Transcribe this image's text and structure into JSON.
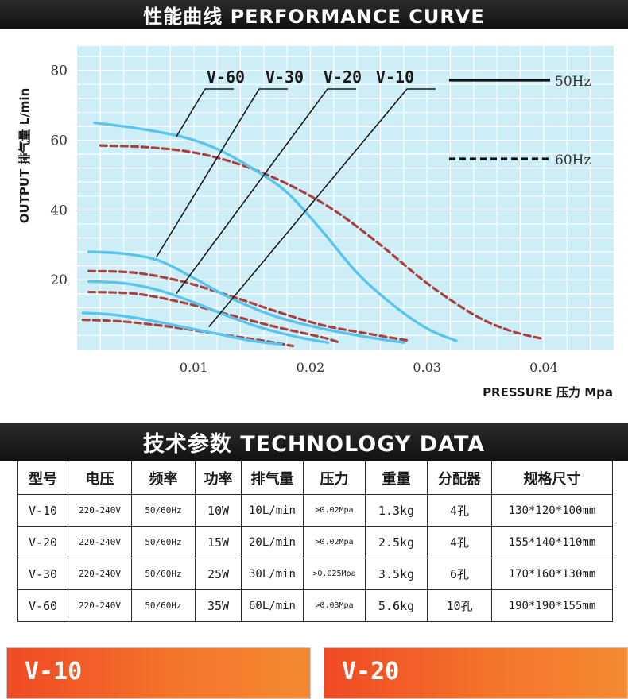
{
  "header": {
    "title": "性能曲线 PERFORMANCE CURVE"
  },
  "chart_data": {
    "type": "line",
    "ylabel": "OUTPUT 排气量 L/min",
    "xlabel": "PRESSURE 压力 Mpa",
    "xlim": [
      0,
      0.046
    ],
    "ylim": [
      0,
      87
    ],
    "xticks": [
      "0.01",
      "0.02",
      "0.03",
      "0.04"
    ],
    "xtick_values": [
      0.01,
      0.02,
      0.03,
      0.04
    ],
    "yticks": [
      "20",
      "40",
      "60",
      "80"
    ],
    "ytick_values": [
      20,
      40,
      60,
      80
    ],
    "grid": true,
    "legend_position": "top-right",
    "legend": [
      {
        "label": "50Hz",
        "style": "solid",
        "color": "#5bc4ee"
      },
      {
        "label": "60Hz",
        "style": "dashed",
        "color": "#a8423f"
      }
    ],
    "colors": {
      "background": "#cdeef7",
      "grid": "#ffffff",
      "line_50hz": "#5bc4ee",
      "line_60hz": "#a8423f"
    },
    "model_labels": [
      "V-60",
      "V-30",
      "V-20",
      "V-10"
    ],
    "series": [
      {
        "name": "V-60",
        "freq": "50Hz",
        "x": [
          0.0015,
          0.005,
          0.009,
          0.012,
          0.015,
          0.018,
          0.021,
          0.024,
          0.027,
          0.03,
          0.0325
        ],
        "y": [
          65,
          63.5,
          61,
          57.5,
          52,
          45,
          34,
          22,
          13,
          6,
          2.5
        ]
      },
      {
        "name": "V-60",
        "freq": "60Hz",
        "x": [
          0.002,
          0.006,
          0.01,
          0.014,
          0.018,
          0.022,
          0.026,
          0.03,
          0.034,
          0.037,
          0.04
        ],
        "y": [
          58.5,
          58,
          56.5,
          53,
          47.5,
          40,
          30,
          19,
          10,
          5.5,
          3
        ]
      },
      {
        "name": "V-30",
        "freq": "50Hz",
        "x": [
          0.001,
          0.004,
          0.007,
          0.01,
          0.013,
          0.017,
          0.021,
          0.025,
          0.028
        ],
        "y": [
          28,
          27.5,
          25.5,
          20.5,
          15,
          9.5,
          6,
          3.5,
          2
        ]
      },
      {
        "name": "V-30",
        "freq": "60Hz",
        "x": [
          0.001,
          0.005,
          0.009,
          0.013,
          0.017,
          0.021,
          0.025,
          0.0285
        ],
        "y": [
          22.5,
          22,
          19.5,
          15.5,
          11,
          7,
          4.5,
          2.5
        ]
      },
      {
        "name": "V-20",
        "freq": "50Hz",
        "x": [
          0.001,
          0.004,
          0.007,
          0.01,
          0.013,
          0.016,
          0.019,
          0.0215
        ],
        "y": [
          19.5,
          19,
          17,
          13.5,
          9.5,
          6,
          3.5,
          2
        ]
      },
      {
        "name": "V-20",
        "freq": "60Hz",
        "x": [
          0.001,
          0.005,
          0.009,
          0.013,
          0.017,
          0.021,
          0.0225
        ],
        "y": [
          16.5,
          16,
          13.5,
          10,
          6.5,
          3.5,
          2
        ]
      },
      {
        "name": "V-10",
        "freq": "50Hz",
        "x": [
          0.0005,
          0.003,
          0.006,
          0.009,
          0.012,
          0.015,
          0.0175
        ],
        "y": [
          10.5,
          10,
          8.5,
          6.5,
          4.5,
          2.5,
          1.5
        ]
      },
      {
        "name": "V-10",
        "freq": "60Hz",
        "x": [
          0.0005,
          0.004,
          0.008,
          0.012,
          0.016,
          0.0185
        ],
        "y": [
          8.5,
          8,
          6.5,
          4.5,
          2.5,
          1
        ]
      }
    ],
    "callouts": [
      {
        "label": "V-60",
        "x": 0.0085,
        "y": 61
      },
      {
        "label": "V-30",
        "x": 0.0068,
        "y": 26.5
      },
      {
        "label": "V-20",
        "x": 0.0085,
        "y": 16
      },
      {
        "label": "V-10",
        "x": 0.0113,
        "y": 6.5
      }
    ]
  },
  "section2": {
    "title": "技术参数 TECHNOLOGY DATA"
  },
  "table": {
    "headers": [
      "型号",
      "电压",
      "频率",
      "功率",
      "排气量",
      "压力",
      "重量",
      "分配器",
      "规格尺寸"
    ],
    "rows": [
      [
        "V-10",
        "220-240V",
        "50/60Hz",
        "10W",
        "10L/min",
        ">0.02Mpa",
        "1.3kg",
        "4孔",
        "130*120*100mm"
      ],
      [
        "V-20",
        "220-240V",
        "50/60Hz",
        "15W",
        "20L/min",
        ">0.02Mpa",
        "2.5kg",
        "4孔",
        "155*140*110mm"
      ],
      [
        "V-30",
        "220-240V",
        "50/60Hz",
        "25W",
        "30L/min",
        ">0.025Mpa",
        "3.5kg",
        "6孔",
        "170*160*130mm"
      ],
      [
        "V-60",
        "220-240V",
        "50/60Hz",
        "35W",
        "60L/min",
        ">0.03Mpa",
        "5.6kg",
        "10孔",
        "190*190*155mm"
      ]
    ]
  },
  "cards": [
    {
      "title": "V-10"
    },
    {
      "title": "V-20"
    }
  ]
}
